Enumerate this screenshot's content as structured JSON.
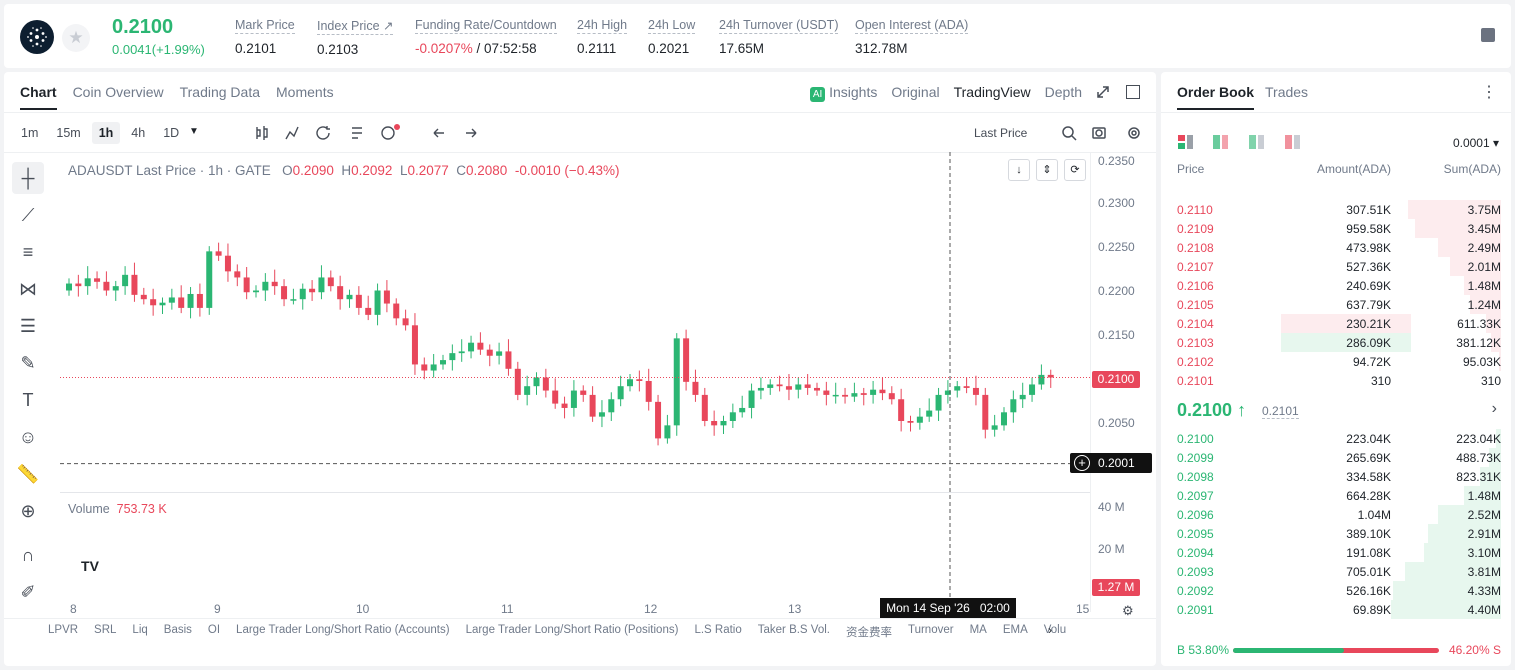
{
  "ticker": {
    "price": "0.2100",
    "change": "0.0041(+1.99%)",
    "stats": [
      {
        "label": "Mark Price",
        "value": "0.2101"
      },
      {
        "label": "Index Price ↗",
        "value": "0.2103"
      },
      {
        "label": "Funding Rate/Countdown",
        "value": "-0.0207%",
        "value2": " / 07:52:58"
      },
      {
        "label": "24h High",
        "value": "0.2111"
      },
      {
        "label": "24h Low",
        "value": "0.2021"
      },
      {
        "label": "24h Turnover (USDT)",
        "value": "17.65M"
      },
      {
        "label": "Open Interest (ADA)",
        "value": "312.78M"
      }
    ]
  },
  "chart_tabs": [
    "Chart",
    "Coin Overview",
    "Trading Data",
    "Moments"
  ],
  "view_tabs": [
    "Insights",
    "Original",
    "TradingView",
    "Depth"
  ],
  "timeframes": [
    "1m",
    "15m",
    "1h",
    "4h",
    "1D"
  ],
  "price_type": "Last Price",
  "legend": {
    "symbol": "ADAUSDT Last Price · 1h · GATE",
    "o": "0.2090",
    "h": "0.2092",
    "l": "0.2077",
    "c": "0.2080",
    "chg": "-0.0010 (−0.43%)"
  },
  "volume": {
    "label": "Volume",
    "value": "753.73 K"
  },
  "y_ticks": [
    "0.2350",
    "0.2300",
    "0.2250",
    "0.2200",
    "0.2150",
    "0.2050"
  ],
  "vol_ticks": [
    "40 M",
    "20 M"
  ],
  "price_tag": "0.2100",
  "cross_tag": "0.2001",
  "vol_tag": "1.27 M",
  "x_ticks": [
    "8",
    "9",
    "10",
    "11",
    "12",
    "13",
    "15"
  ],
  "crosshair_time": "Mon 14 Sep '26   02:00",
  "indicators": [
    "LPVR",
    "SRL",
    "Liq",
    "Basis",
    "OI",
    "Large Trader Long/Short Ratio (Accounts)",
    "Large Trader Long/Short Ratio (Positions)",
    "L.S Ratio",
    "Taker B.S Vol.",
    "资金费率",
    "Turnover",
    "MA",
    "EMA",
    "Volu"
  ],
  "orderbook": {
    "tabs": [
      "Order Book",
      "Trades"
    ],
    "precision": "0.0001",
    "headers": [
      "Price",
      "Amount(ADA)",
      "Sum(ADA)"
    ],
    "asks": [
      [
        "0.2110",
        "307.51K",
        "3.75M",
        0.85
      ],
      [
        "0.2109",
        "959.58K",
        "3.45M",
        0.78
      ],
      [
        "0.2108",
        "473.98K",
        "2.49M",
        0.57
      ],
      [
        "0.2107",
        "527.36K",
        "2.01M",
        0.46
      ],
      [
        "0.2106",
        "240.69K",
        "1.48M",
        0.34
      ],
      [
        "0.2105",
        "637.79K",
        "1.24M",
        0.28
      ],
      [
        "0.2104",
        "230.21K",
        "611.33K",
        0.14
      ],
      [
        "0.2103",
        "286.09K",
        "381.12K",
        0.09
      ],
      [
        "0.2102",
        "94.72K",
        "95.03K",
        0.02
      ],
      [
        "0.2101",
        "310",
        "310",
        0.0
      ]
    ],
    "mid": "0.2100",
    "mid_mark": "0.2101",
    "bids": [
      [
        "0.2100",
        "223.04K",
        "223.04K",
        0.05
      ],
      [
        "0.2099",
        "265.69K",
        "488.73K",
        0.11
      ],
      [
        "0.2098",
        "334.58K",
        "823.31K",
        0.19
      ],
      [
        "0.2097",
        "664.28K",
        "1.48M",
        0.34
      ],
      [
        "0.2096",
        "1.04M",
        "2.52M",
        0.57
      ],
      [
        "0.2095",
        "389.10K",
        "2.91M",
        0.66
      ],
      [
        "0.2094",
        "191.08K",
        "3.10M",
        0.7
      ],
      [
        "0.2093",
        "705.01K",
        "3.81M",
        0.87
      ],
      [
        "0.2092",
        "526.16K",
        "4.33M",
        0.98
      ],
      [
        "0.2091",
        "69.89K",
        "4.40M",
        1.0
      ]
    ],
    "buy_pct": "53.80%",
    "sell_pct": "46.20%",
    "buy_ratio": 0.538
  },
  "colors": {
    "up": "#2bb673",
    "down": "#e8475b"
  }
}
